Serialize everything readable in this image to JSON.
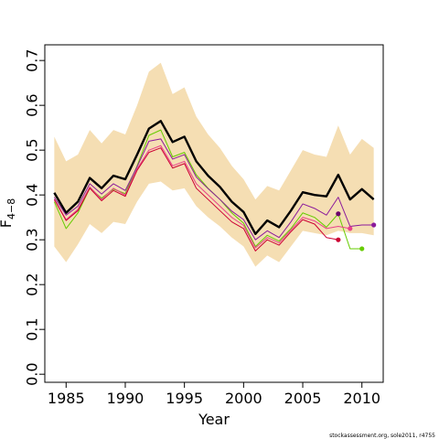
{
  "chart_data": {
    "type": "line",
    "title": "",
    "xlabel": "Year",
    "ylabel_main": "F",
    "ylabel_sub": "4−8",
    "xlim": [
      1983.2,
      2011.8
    ],
    "ylim": [
      -0.018,
      0.735
    ],
    "x_ticks": [
      1985,
      1990,
      1995,
      2000,
      2005,
      2010
    ],
    "y_ticks": [
      0.0,
      0.1,
      0.2,
      0.3,
      0.4,
      0.5,
      0.6,
      0.7
    ],
    "y_tick_labels": [
      "0.0",
      "0.1",
      "0.2",
      "0.3",
      "0.4",
      "0.5",
      "0.6",
      "0.7"
    ],
    "grid": false,
    "band": {
      "color": "#f5deb3",
      "x": [
        1984,
        1985,
        1986,
        1987,
        1988,
        1989,
        1990,
        1991,
        1992,
        1993,
        1994,
        1995,
        1996,
        1997,
        1998,
        1999,
        2000,
        2001,
        2002,
        2003,
        2004,
        2005,
        2006,
        2007,
        2008,
        2009,
        2010,
        2011
      ],
      "upper": [
        0.53,
        0.475,
        0.49,
        0.545,
        0.515,
        0.545,
        0.535,
        0.6,
        0.675,
        0.695,
        0.625,
        0.64,
        0.575,
        0.535,
        0.505,
        0.465,
        0.435,
        0.39,
        0.42,
        0.41,
        0.455,
        0.5,
        0.49,
        0.485,
        0.555,
        0.49,
        0.525,
        0.505
      ],
      "lower": [
        0.285,
        0.25,
        0.29,
        0.335,
        0.315,
        0.34,
        0.335,
        0.385,
        0.425,
        0.43,
        0.41,
        0.415,
        0.375,
        0.35,
        0.33,
        0.305,
        0.285,
        0.24,
        0.265,
        0.25,
        0.285,
        0.32,
        0.315,
        0.31,
        0.32,
        0.315,
        0.315,
        0.31
      ]
    },
    "series": [
      {
        "color": "#000000",
        "width": 2.4,
        "x": [
          1984,
          1985,
          1986,
          1987,
          1988,
          1989,
          1990,
          1991,
          1992,
          1993,
          1994,
          1995,
          1996,
          1997,
          1998,
          1999,
          2000,
          2001,
          2002,
          2003,
          2004,
          2005,
          2006,
          2007,
          2008,
          2009,
          2010,
          2011
        ],
        "values": [
          0.405,
          0.36,
          0.385,
          0.438,
          0.415,
          0.443,
          0.435,
          0.49,
          0.548,
          0.565,
          0.518,
          0.53,
          0.475,
          0.443,
          0.418,
          0.385,
          0.362,
          0.313,
          0.343,
          0.328,
          0.365,
          0.406,
          0.4,
          0.397,
          0.445,
          0.39,
          0.413,
          0.39
        ]
      },
      {
        "color": "#66cc00",
        "width": 1,
        "end_marker": true,
        "x": [
          1984,
          1985,
          1986,
          1987,
          1988,
          1989,
          1990,
          1991,
          1992,
          1993,
          1994,
          1995,
          1996,
          1997,
          1998,
          1999,
          2000,
          2001,
          2002,
          2003,
          2004,
          2005,
          2006,
          2007,
          2008,
          2009,
          2010
        ],
        "values": [
          0.385,
          0.325,
          0.36,
          0.415,
          0.393,
          0.413,
          0.403,
          0.465,
          0.533,
          0.545,
          0.485,
          0.495,
          0.445,
          0.415,
          0.39,
          0.36,
          0.337,
          0.285,
          0.31,
          0.297,
          0.325,
          0.36,
          0.35,
          0.328,
          0.358,
          0.28,
          0.28
        ]
      },
      {
        "color": "#8b1a9b",
        "width": 1,
        "end_marker": true,
        "x": [
          1984,
          1985,
          1986,
          1987,
          1988,
          1989,
          1990,
          1991,
          1992,
          1993,
          1994,
          1995,
          1996,
          1997,
          1998,
          1999,
          2000,
          2001,
          2002,
          2003,
          2004,
          2005,
          2006,
          2007,
          2008,
          2009,
          2010,
          2011
        ],
        "values": [
          0.395,
          0.355,
          0.375,
          0.425,
          0.402,
          0.425,
          0.41,
          0.463,
          0.52,
          0.525,
          0.48,
          0.49,
          0.44,
          0.414,
          0.39,
          0.364,
          0.345,
          0.3,
          0.32,
          0.305,
          0.34,
          0.38,
          0.37,
          0.355,
          0.395,
          0.33,
          0.333,
          0.333
        ]
      },
      {
        "color": "#e8408a",
        "width": 1,
        "end_marker": true,
        "x": [
          1984,
          1985,
          1986,
          1987,
          1988,
          1989,
          1990,
          1991,
          1992,
          1993,
          1994,
          1995,
          1996,
          1997,
          1998,
          1999,
          2000,
          2001,
          2002,
          2003,
          2004,
          2005,
          2006,
          2007,
          2008,
          2009
        ],
        "values": [
          0.39,
          0.345,
          0.368,
          0.418,
          0.39,
          0.415,
          0.4,
          0.458,
          0.5,
          0.51,
          0.465,
          0.475,
          0.425,
          0.4,
          0.375,
          0.35,
          0.332,
          0.282,
          0.305,
          0.293,
          0.322,
          0.35,
          0.342,
          0.325,
          0.33,
          0.325
        ]
      },
      {
        "color": "#cc0033",
        "width": 1,
        "end_marker": true,
        "x": [
          1984,
          1985,
          1986,
          1987,
          1988,
          1989,
          1990,
          1991,
          1992,
          1993,
          1994,
          1995,
          1996,
          1997,
          1998,
          1999,
          2000,
          2001,
          2002,
          2003,
          2004,
          2005,
          2006,
          2007,
          2008
        ],
        "values": [
          0.39,
          0.343,
          0.365,
          0.415,
          0.387,
          0.41,
          0.397,
          0.455,
          0.495,
          0.505,
          0.46,
          0.47,
          0.415,
          0.39,
          0.365,
          0.34,
          0.325,
          0.275,
          0.3,
          0.288,
          0.318,
          0.345,
          0.335,
          0.305,
          0.3
        ]
      },
      {
        "color": "#6a006a",
        "width": 0,
        "end_marker": true,
        "x": [
          2008
        ],
        "values": [
          0.358
        ]
      }
    ],
    "credit": "stockassessment.org, sole2011, r4755"
  }
}
